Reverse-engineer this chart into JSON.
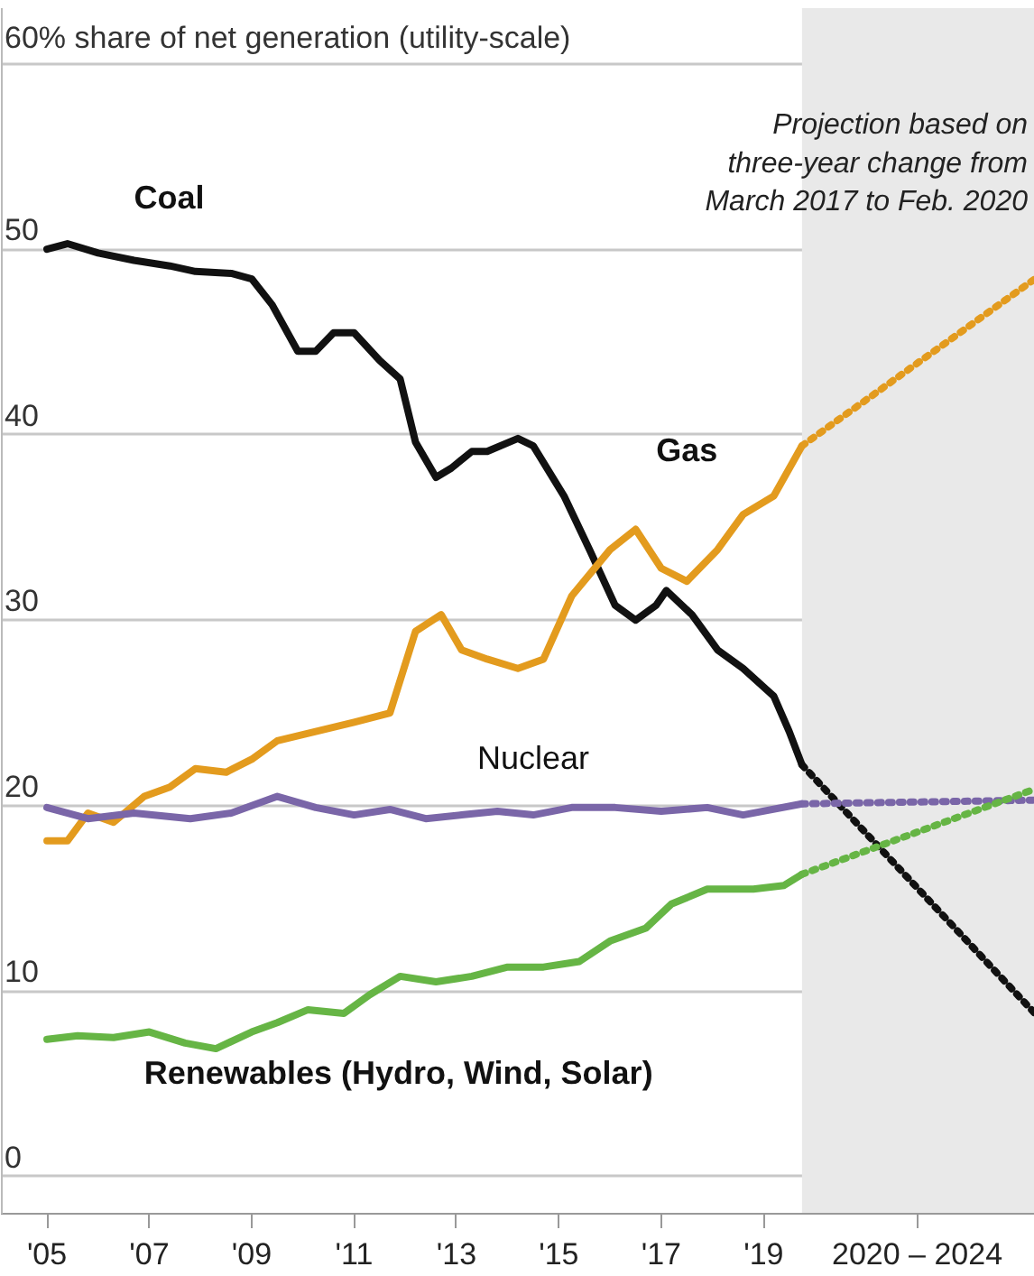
{
  "chart_data": {
    "type": "line",
    "xlim": [
      2004.1,
      2024.3
    ],
    "ylim": [
      -2,
      63
    ],
    "xticks": [
      {
        "value": 2005,
        "label": "'05"
      },
      {
        "value": 2007,
        "label": "'07"
      },
      {
        "value": 2009,
        "label": "'09"
      },
      {
        "value": 2011,
        "label": "'11"
      },
      {
        "value": 2013,
        "label": "'13"
      },
      {
        "value": 2015,
        "label": "'15"
      },
      {
        "value": 2017,
        "label": "'17"
      },
      {
        "value": 2019,
        "label": "'19"
      },
      {
        "value": 2022,
        "label": "2020 – 2024"
      }
    ],
    "yticks": [
      0,
      10,
      20,
      30,
      40,
      50,
      {
        "value": 60,
        "label": "60% share of net generation (utility-scale)"
      }
    ],
    "grid": "y",
    "marker": "none",
    "bands": [
      {
        "axis": "x",
        "from": 2019.75,
        "to": 2024.3,
        "color": "#e9e9e9",
        "label": null
      }
    ],
    "annotations": [
      "Projection based on\nthree-year change from\nMarch 2017 to Feb. 2020"
    ],
    "series": [
      {
        "name": "Coal",
        "color": "#111111",
        "line_style": "solid",
        "x": [
          2005,
          2005.4,
          2006,
          2006.7,
          2007.4,
          2007.9,
          2008.6,
          2009,
          2009.4,
          2009.9,
          2010.25,
          2010.6,
          2011,
          2011.5,
          2011.9,
          2012.2,
          2012.6,
          2012.9,
          2013.3,
          2013.6,
          2014.2,
          2014.5,
          2015.1,
          2015.6,
          2016.1,
          2016.5,
          2016.9,
          2017.1,
          2017.6,
          2018.1,
          2018.6,
          2019.2,
          2019.5,
          2019.75
        ],
        "values": [
          50.0,
          50.3,
          49.8,
          49.4,
          49.1,
          48.8,
          48.7,
          48.4,
          47,
          44.5,
          44.5,
          45.5,
          45.5,
          44,
          43,
          39.6,
          37.7,
          38.2,
          39.1,
          39.1,
          39.8,
          39.4,
          36.7,
          33.8,
          30.8,
          30.0,
          30.8,
          31.6,
          30.3,
          28.4,
          27.4,
          25.9,
          24,
          22.2
        ]
      },
      {
        "name": "Gas",
        "color": "#e39b1e",
        "line_style": "solid",
        "x": [
          2005,
          2005.4,
          2005.8,
          2006.3,
          2006.9,
          2007.4,
          2007.9,
          2008.5,
          2009,
          2009.5,
          2010.25,
          2011,
          2011.7,
          2012.2,
          2012.7,
          2013.1,
          2013.6,
          2014.2,
          2014.7,
          2015.25,
          2016,
          2016.5,
          2017,
          2017.5,
          2018.1,
          2018.6,
          2019.2,
          2019.75
        ],
        "values": [
          18.1,
          18.1,
          19.6,
          19.1,
          20.5,
          21.0,
          22.0,
          21.8,
          22.5,
          23.5,
          24,
          24.5,
          25,
          29.4,
          30.3,
          28.4,
          27.9,
          27.4,
          27.9,
          31.3,
          33.8,
          34.9,
          32.8,
          32.1,
          33.8,
          35.7,
          36.7,
          39.4
        ]
      },
      {
        "name": "Nuclear",
        "color": "#7a66a8",
        "line_style": "solid",
        "x": [
          2005,
          2005.8,
          2006.7,
          2007.8,
          2008.6,
          2009.5,
          2010.25,
          2011,
          2011.7,
          2012.4,
          2013.1,
          2013.8,
          2014.5,
          2015.25,
          2016.1,
          2017,
          2017.9,
          2018.6,
          2019.75
        ],
        "values": [
          19.9,
          19.3,
          19.6,
          19.3,
          19.6,
          20.5,
          19.9,
          19.5,
          19.8,
          19.3,
          19.5,
          19.7,
          19.5,
          19.9,
          19.9,
          19.7,
          19.9,
          19.5,
          20.1
        ]
      },
      {
        "name": "Renewables (Hydro, Wind, Solar)",
        "color": "#66b545",
        "line_style": "solid",
        "x": [
          2005,
          2005.6,
          2006.3,
          2007,
          2007.7,
          2008.3,
          2009,
          2009.5,
          2010.1,
          2010.8,
          2011.3,
          2011.9,
          2012.6,
          2013.3,
          2014,
          2014.7,
          2015.4,
          2016,
          2016.7,
          2017.2,
          2017.9,
          2018.8,
          2019.4,
          2019.75
        ],
        "values": [
          7.4,
          7.6,
          7.5,
          7.8,
          7.2,
          6.9,
          7.8,
          8.3,
          9.0,
          8.8,
          9.8,
          10.8,
          10.5,
          10.8,
          11.3,
          11.3,
          11.6,
          12.7,
          13.4,
          14.7,
          15.5,
          15.5,
          15.7,
          16.3
        ]
      },
      {
        "color": "#111111",
        "line_style": "dotted",
        "x": [
          2019.75,
          2024.3
        ],
        "values": [
          22.2,
          8.8
        ]
      },
      {
        "color": "#e39b1e",
        "line_style": "dotted",
        "x": [
          2019.75,
          2024.3
        ],
        "values": [
          39.4,
          48.4
        ]
      },
      {
        "color": "#7a66a8",
        "line_style": "dotted",
        "x": [
          2019.75,
          2024.3
        ],
        "values": [
          20.1,
          20.3
        ]
      },
      {
        "color": "#66b545",
        "line_style": "dotted",
        "x": [
          2019.75,
          2024.3
        ],
        "values": [
          16.3,
          20.9
        ]
      }
    ]
  }
}
